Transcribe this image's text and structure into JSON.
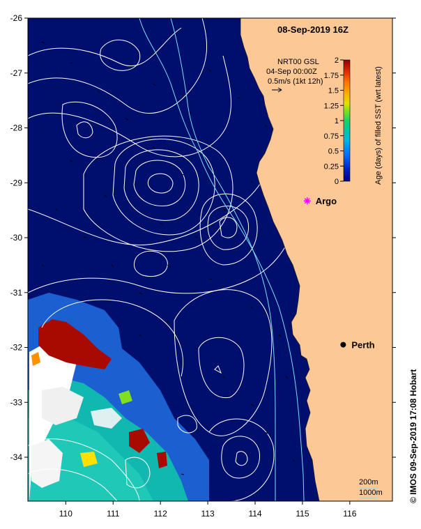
{
  "map": {
    "title": "08-Sep-2019 16Z",
    "xlim": [
      109.2,
      116.9
    ],
    "ylim": [
      -34.8,
      -26
    ],
    "x_ticks": [
      110,
      111,
      112,
      113,
      114,
      115,
      116
    ],
    "y_ticks": [
      -26,
      -27,
      -28,
      -29,
      -30,
      -31,
      -32,
      -33,
      -34
    ],
    "grid": false
  },
  "velocity_legend": {
    "line1": "NRT00 GSL",
    "line2": "04-Sep 00:00Z",
    "line3": "0.5m/s (1kt 12h)"
  },
  "colorbar": {
    "label": "Age (days) of filled SST (wrt latest)",
    "ticks": [
      "2",
      "1.75",
      "1.5",
      "1.25",
      "1",
      "0.75",
      "0.5",
      "0.25",
      "0"
    ],
    "range": [
      0,
      2
    ],
    "colors": [
      "#000080",
      "#0010b0",
      "#0050e0",
      "#0090ff",
      "#00c8c8",
      "#00d080",
      "#40e040",
      "#c0e000",
      "#ffe000",
      "#ffa000",
      "#ff6000",
      "#e03000",
      "#a00000"
    ]
  },
  "places": [
    {
      "name": "Argo",
      "lon": 115.1,
      "lat": -29.33,
      "marker": "magenta-star"
    },
    {
      "name": "Perth",
      "lon": 115.86,
      "lat": -31.95,
      "marker": "black-dot"
    }
  ],
  "depth_legend": {
    "item1": "200m",
    "item2": "1000m"
  },
  "credit": "© IMOS 09-Sep-2019 17:08 Hobart",
  "colors": {
    "ocean": "#000e6e",
    "land": "#fcc896",
    "contour": "#ffffff",
    "isobath": "#7fe0f0",
    "stale_data": "#a80a00"
  }
}
